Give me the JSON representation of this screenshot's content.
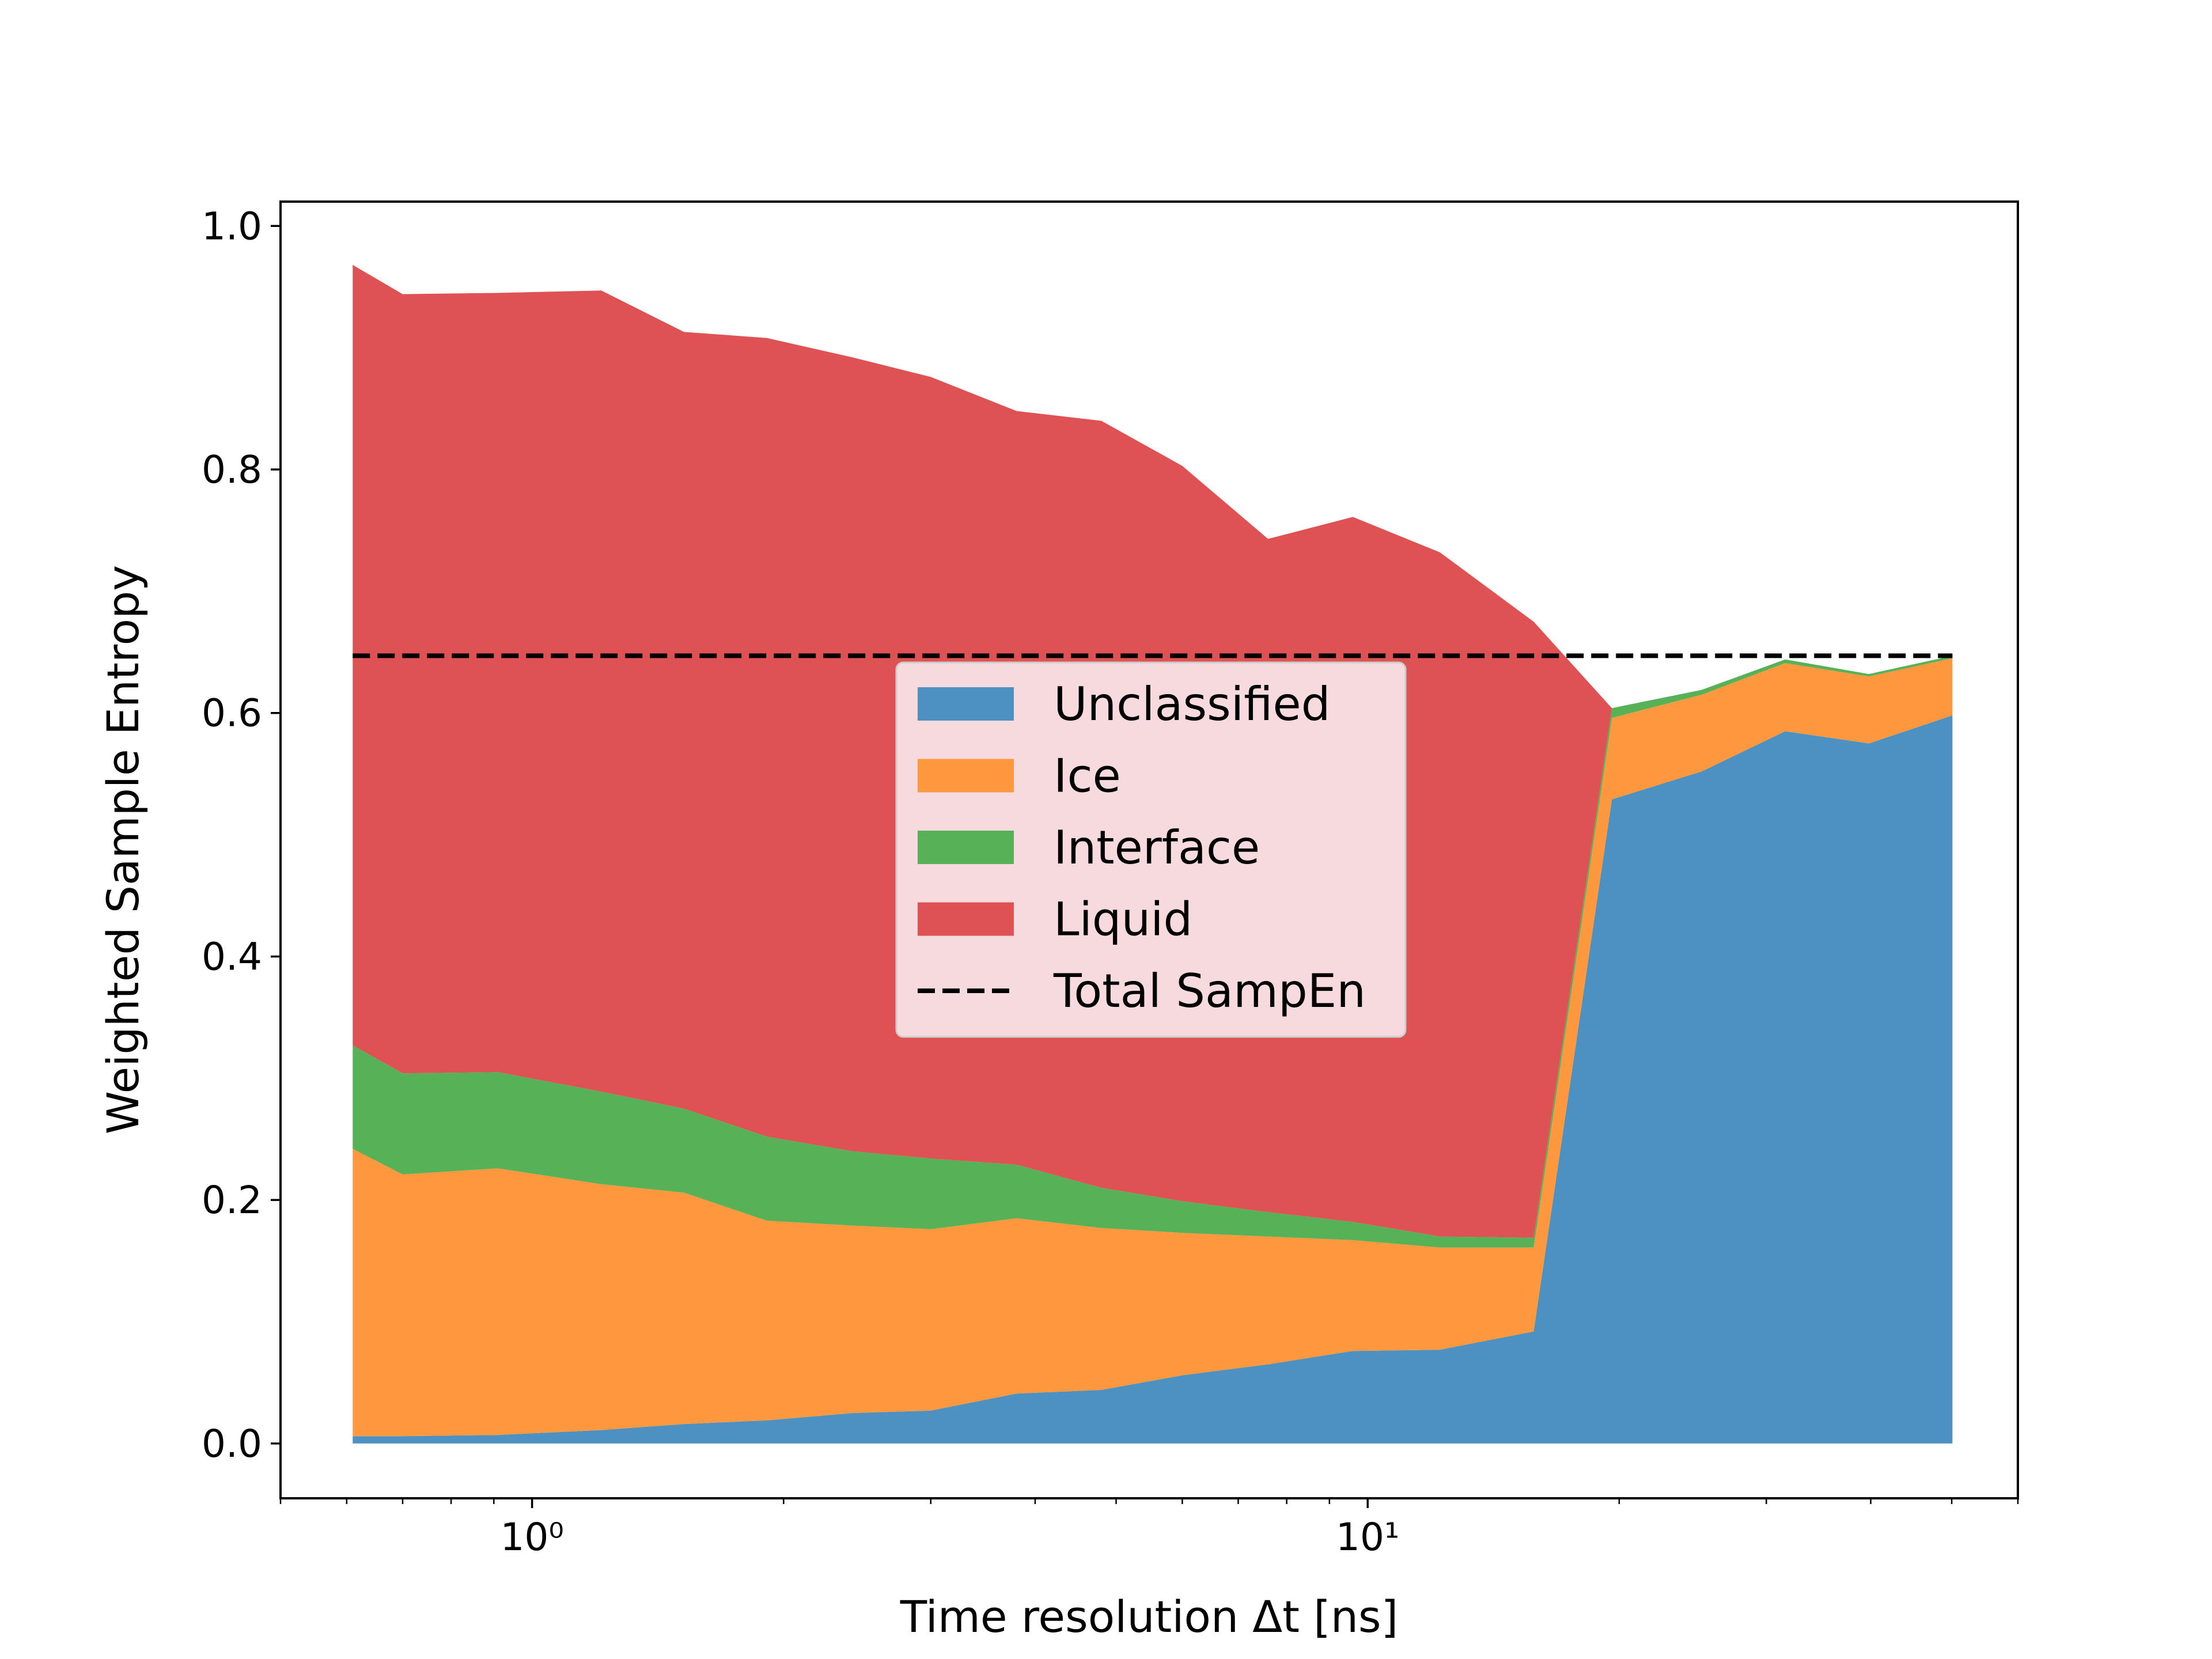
{
  "chart_data": {
    "type": "area",
    "stacked": true,
    "xscale": "log",
    "xlabel": "Time resolution Δt [ns]",
    "ylabel": "Weighted Sample Entropy",
    "xlim": [
      0.5,
      60
    ],
    "ylim": [
      -0.045,
      1.02
    ],
    "xticks": [
      {
        "value": 1,
        "label": "10⁰"
      },
      {
        "value": 10,
        "label": "10¹"
      }
    ],
    "yticks": [
      {
        "value": 0.0,
        "label": "0.0"
      },
      {
        "value": 0.2,
        "label": "0.2"
      },
      {
        "value": 0.4,
        "label": "0.4"
      },
      {
        "value": 0.6,
        "label": "0.6"
      },
      {
        "value": 0.8,
        "label": "0.8"
      },
      {
        "value": 1.0,
        "label": "1.0"
      }
    ],
    "grid": false,
    "legend_position": "center",
    "x": [
      0.61,
      0.7,
      0.91,
      1.21,
      1.52,
      1.91,
      2.42,
      3.0,
      3.8,
      4.8,
      6.0,
      7.6,
      9.6,
      12.2,
      15.8,
      19.6,
      25.1,
      31.6,
      39.8,
      50.1
    ],
    "series": [
      {
        "name": "Unclassified",
        "color": "#4c91c1",
        "values": [
          0.006,
          0.006,
          0.007,
          0.011,
          0.016,
          0.019,
          0.025,
          0.027,
          0.041,
          0.044,
          0.056,
          0.065,
          0.076,
          0.077,
          0.092,
          0.529,
          0.552,
          0.585,
          0.575,
          0.598
        ]
      },
      {
        "name": "Ice",
        "color": "#fd983f",
        "values": [
          0.236,
          0.215,
          0.219,
          0.202,
          0.19,
          0.164,
          0.154,
          0.149,
          0.144,
          0.133,
          0.117,
          0.105,
          0.091,
          0.084,
          0.069,
          0.067,
          0.063,
          0.056,
          0.055,
          0.047
        ]
      },
      {
        "name": "Interface",
        "color": "#56b157",
        "values": [
          0.085,
          0.083,
          0.079,
          0.076,
          0.069,
          0.069,
          0.061,
          0.058,
          0.044,
          0.033,
          0.026,
          0.02,
          0.015,
          0.009,
          0.008,
          0.008,
          0.004,
          0.003,
          0.002,
          0.002
        ]
      },
      {
        "name": "Liquid",
        "color": "#de5254",
        "values": [
          0.641,
          0.64,
          0.64,
          0.658,
          0.638,
          0.656,
          0.652,
          0.642,
          0.619,
          0.63,
          0.604,
          0.553,
          0.579,
          0.562,
          0.506,
          0.0,
          0.0,
          0.0,
          0.0,
          0.0
        ]
      }
    ],
    "reference_line": {
      "name": "Total SampEn",
      "value": 0.647,
      "color": "#000000",
      "style": "dashed"
    }
  }
}
